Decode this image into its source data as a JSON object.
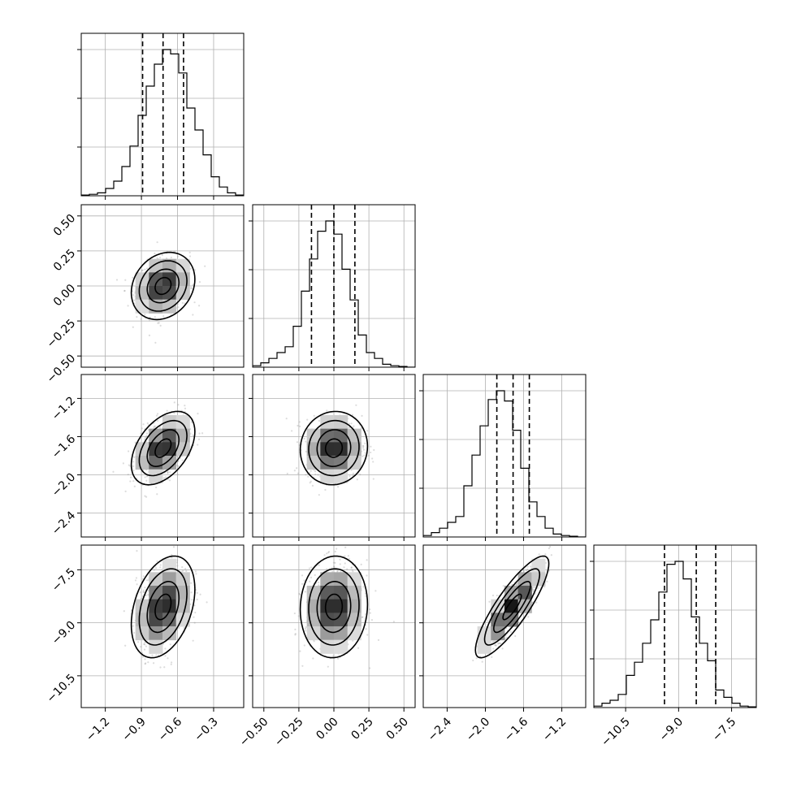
{
  "chart_data": {
    "type": "corner",
    "parameters": [
      {
        "mean": -0.72,
        "std": 0.11,
        "range": [
          -1.4,
          -0.05
        ],
        "ticks": [
          -1.2,
          -0.9,
          -0.6,
          -0.3
        ],
        "tick_labels": [
          "−1.2",
          "−0.9",
          "−0.6",
          "−0.3"
        ],
        "quantiles": [
          -0.89,
          -0.72,
          -0.55
        ]
      },
      {
        "mean": 0.0,
        "std": 0.1,
        "range": [
          -0.58,
          0.58
        ],
        "ticks": [
          -0.5,
          -0.25,
          0.0,
          0.25,
          0.5
        ],
        "tick_labels": [
          "−0.50",
          "−0.25",
          "0.00",
          "0.25",
          "0.50"
        ],
        "quantiles": [
          -0.16,
          0.0,
          0.15
        ]
      },
      {
        "mean": -1.72,
        "std": 0.16,
        "range": [
          -2.65,
          -0.95
        ],
        "ticks": [
          -2.4,
          -2.0,
          -1.6,
          -1.2
        ],
        "tick_labels": [
          "−2.4",
          "−2.0",
          "−1.6",
          "−1.2"
        ],
        "quantiles": [
          -1.88,
          -1.71,
          -1.54
        ]
      },
      {
        "mean": -8.55,
        "std": 0.6,
        "range": [
          -11.4,
          -6.8
        ],
        "ticks": [
          -10.5,
          -9.0,
          -7.5
        ],
        "tick_labels": [
          "−10.5",
          "−9.0",
          "−7.5"
        ],
        "quantiles": [
          -9.4,
          -8.5,
          -7.95
        ]
      }
    ],
    "correlations": {
      "1-0": 0.2,
      "2-0": 0.45,
      "2-1": 0.05,
      "3-0": 0.35,
      "3-1": 0.05,
      "3-2": 0.85
    },
    "histograms": [
      [
        0.005,
        0.01,
        0.02,
        0.05,
        0.1,
        0.2,
        0.34,
        0.55,
        0.75,
        0.9,
        1.0,
        0.97,
        0.84,
        0.6,
        0.45,
        0.28,
        0.13,
        0.06,
        0.02,
        0.005
      ],
      [
        0.01,
        0.03,
        0.06,
        0.1,
        0.14,
        0.28,
        0.52,
        0.74,
        0.93,
        1.0,
        0.91,
        0.67,
        0.46,
        0.22,
        0.1,
        0.06,
        0.02,
        0.01,
        0.005,
        0.0
      ],
      [
        0.01,
        0.03,
        0.06,
        0.1,
        0.14,
        0.35,
        0.56,
        0.76,
        0.94,
        1.0,
        0.93,
        0.73,
        0.47,
        0.24,
        0.14,
        0.06,
        0.02,
        0.01,
        0.005,
        0.0
      ],
      [
        0.01,
        0.03,
        0.05,
        0.09,
        0.22,
        0.31,
        0.44,
        0.6,
        0.79,
        0.98,
        1.0,
        0.88,
        0.62,
        0.44,
        0.32,
        0.12,
        0.07,
        0.03,
        0.01,
        0.005
      ]
    ],
    "contour_levels_sigma": [
      0.5,
      1.0,
      1.5,
      2.0
    ],
    "grid": true
  },
  "colors": {
    "ink": "#000000",
    "grid": "#b0b0b0",
    "points": "#9a9a9a"
  }
}
